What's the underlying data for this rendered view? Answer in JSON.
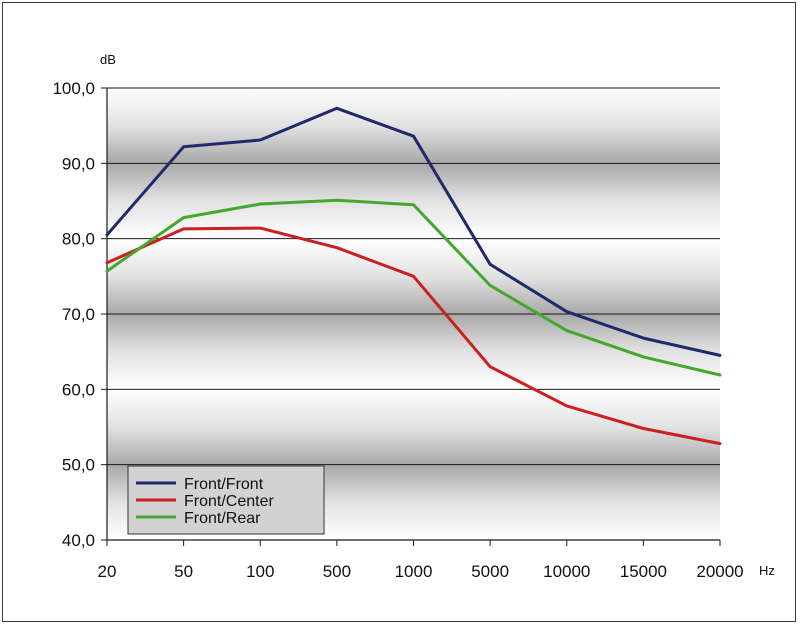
{
  "chart_data": {
    "type": "line",
    "categories": [
      "20",
      "50",
      "100",
      "500",
      "1000",
      "5000",
      "10000",
      "15000",
      "20000"
    ],
    "series": [
      {
        "name": "Front/Front",
        "color": "#1f2a6b",
        "values": [
          80.5,
          92.2,
          93.1,
          97.3,
          93.6,
          76.6,
          70.3,
          66.8,
          64.5
        ]
      },
      {
        "name": "Front/Center",
        "color": "#cc1f1f",
        "values": [
          76.8,
          81.3,
          81.4,
          78.8,
          75.0,
          63.0,
          57.8,
          54.8,
          52.8
        ]
      },
      {
        "name": "Front/Rear",
        "color": "#44a82e",
        "values": [
          75.7,
          82.8,
          84.6,
          85.1,
          84.5,
          73.8,
          67.8,
          64.3,
          61.9
        ]
      }
    ],
    "y_ticks": [
      "40,0",
      "50,0",
      "60,0",
      "70,0",
      "80,0",
      "90,0",
      "100,0"
    ],
    "ylim": [
      40,
      100
    ],
    "ylabel": "dB",
    "xlabel": "Hz",
    "title": "",
    "grid": true,
    "legend_position": "bottom-left"
  }
}
